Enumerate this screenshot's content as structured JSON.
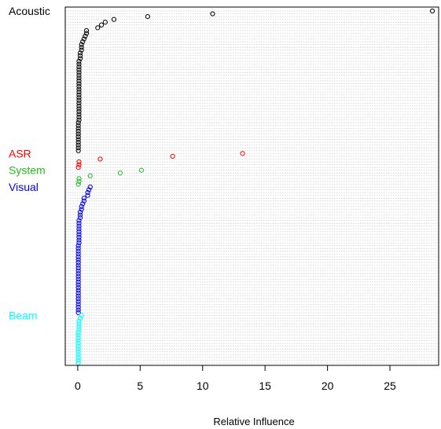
{
  "chart_data": {
    "type": "scatter",
    "title": "",
    "xlabel": "Relative Influence",
    "ylabel": "",
    "xlim": [
      -1.0,
      28.9
    ],
    "x_ticks": [
      0,
      5,
      10,
      15,
      20,
      25
    ],
    "grid": "dotted horizontal row lines, one per variable",
    "legend": "none; group names printed at left of plot",
    "series": [
      {
        "name": "Acoustic",
        "color": "#000000",
        "values": [
          28.4,
          10.8,
          5.6,
          2.9,
          2.2,
          1.9,
          1.6,
          0.7,
          0.7,
          0.6,
          0.5,
          0.4,
          0.3,
          0.3,
          0.3,
          0.2,
          0.2,
          0.2,
          0.1,
          0.1,
          0.1,
          0.1,
          0.1,
          0.1,
          0.1,
          0.1,
          0.1,
          0.1,
          0.1,
          0.1,
          0.1,
          0.1,
          0.1,
          0.1,
          0.1,
          0.1,
          0.1,
          0.1,
          0.1,
          0.1,
          0.05,
          0.05,
          0.05,
          0.05,
          0.05,
          0.05,
          0.05,
          0.05,
          0.05,
          0.05,
          0.05
        ]
      },
      {
        "name": "ASR",
        "color": "#ff0000",
        "values": [
          13.2,
          7.6,
          1.8,
          0.1,
          0.1,
          0.05
        ]
      },
      {
        "name": "System",
        "color": "#22bb22",
        "values": [
          5.1,
          3.4,
          1.0,
          0.1,
          0.1,
          0.05
        ]
      },
      {
        "name": "Visual",
        "color": "#0000ee",
        "values": [
          1.0,
          0.9,
          0.8,
          0.8,
          0.5,
          0.5,
          0.4,
          0.3,
          0.3,
          0.2,
          0.2,
          0.2,
          0.1,
          0.1,
          0.1,
          0.1,
          0.1,
          0.1,
          0.1,
          0.1,
          0.1,
          0.05,
          0.05,
          0.05,
          0.05,
          0.05,
          0.05,
          0.05,
          0.05,
          0.05,
          0.05,
          0.05,
          0.05,
          0.05,
          0.05,
          0.05,
          0.05,
          0.05,
          0.05,
          0.05,
          0.05,
          0.05,
          0.05,
          0.05,
          0.05,
          0.05
        ]
      },
      {
        "name": "Beam",
        "color": "#00ffff",
        "values": [
          0.3,
          0.2,
          0.1,
          0.1,
          0.1,
          0.1,
          0.05,
          0.05,
          0.05,
          0.05,
          0.05,
          0.05,
          0.05,
          0.05,
          0.05,
          0.05,
          0.05,
          0.05
        ]
      }
    ]
  }
}
